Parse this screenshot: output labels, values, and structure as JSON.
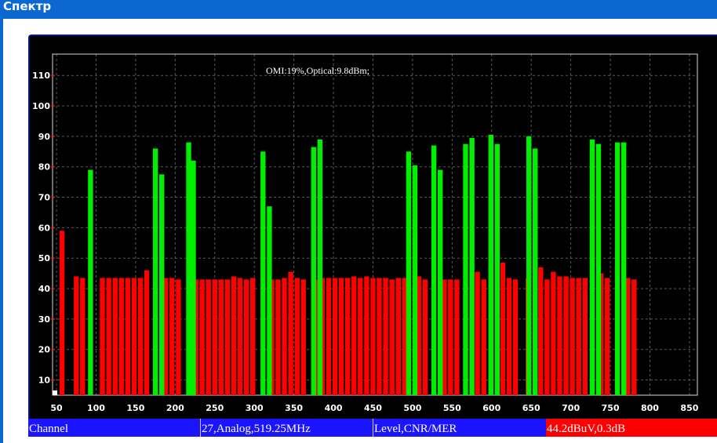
{
  "window": {
    "title": "Спектр"
  },
  "chart_data": {
    "type": "bar",
    "annotation": "OMI:19%,Optical:9.8dBm;",
    "xlim": [
      45,
      860
    ],
    "ylim": [
      5,
      117
    ],
    "x_ticks": [
      50,
      100,
      150,
      200,
      250,
      300,
      350,
      400,
      450,
      500,
      550,
      600,
      650,
      700,
      750,
      800,
      850
    ],
    "y_ticks": [
      10,
      20,
      30,
      40,
      50,
      60,
      70,
      80,
      90,
      100,
      110
    ],
    "grid": true,
    "colors": {
      "analog": "#ff0000",
      "digital": "#00ee00",
      "marker": "#ffffff"
    },
    "marker_x": 48,
    "series": [
      {
        "kind": "analog",
        "x": [
          57,
          75,
          83,
          108,
          116,
          124,
          132,
          140,
          148,
          156,
          164,
          188,
          196,
          204,
          226,
          234,
          242,
          250,
          258,
          266,
          274,
          282,
          290,
          298,
          322,
          330,
          338,
          346,
          354,
          362,
          378,
          386,
          394,
          402,
          410,
          418,
          426,
          434,
          442,
          450,
          458,
          466,
          474,
          482,
          490,
          508,
          516,
          540,
          548,
          556,
          582,
          590,
          614,
          622,
          630,
          646,
          662,
          670,
          678,
          686,
          694,
          702,
          710,
          718,
          738,
          746,
          772,
          780
        ],
        "values": [
          59,
          44,
          43.5,
          43.5,
          43.5,
          43.5,
          43.5,
          43.5,
          43.5,
          43.5,
          46,
          43.5,
          43.5,
          43,
          43,
          43,
          43,
          43,
          43,
          43,
          44,
          43.5,
          43,
          43.5,
          43,
          43,
          43.5,
          45.5,
          43.5,
          43,
          43,
          43.5,
          43.5,
          43.5,
          43.5,
          43.5,
          44,
          43.5,
          44,
          43.5,
          43.5,
          43.5,
          43,
          43.5,
          43.5,
          44,
          43,
          43,
          43,
          43,
          45.5,
          43,
          48.5,
          43.5,
          43,
          43.5,
          47,
          43,
          45.5,
          44,
          44,
          43.5,
          43.5,
          43.5,
          45,
          43.5,
          43.5,
          43
        ]
      },
      {
        "kind": "digital",
        "x": [
          93,
          175,
          183,
          217,
          223,
          311,
          319,
          375,
          383,
          495,
          503,
          527,
          535,
          567,
          575,
          599,
          607,
          647,
          655,
          727,
          735,
          759,
          767
        ],
        "values": [
          79,
          86,
          77.5,
          88,
          82,
          85,
          67,
          86.5,
          89,
          85,
          80.5,
          87,
          79,
          87.5,
          89.5,
          90.5,
          87.5,
          90,
          86,
          89,
          87.5,
          88,
          88
        ]
      }
    ]
  },
  "status_bar": {
    "field1": "Channel",
    "field2": "27,Analog,519.25MHz",
    "field3": "Level,CNR/MER",
    "field4": "44.2dBuV,0.3dB"
  }
}
